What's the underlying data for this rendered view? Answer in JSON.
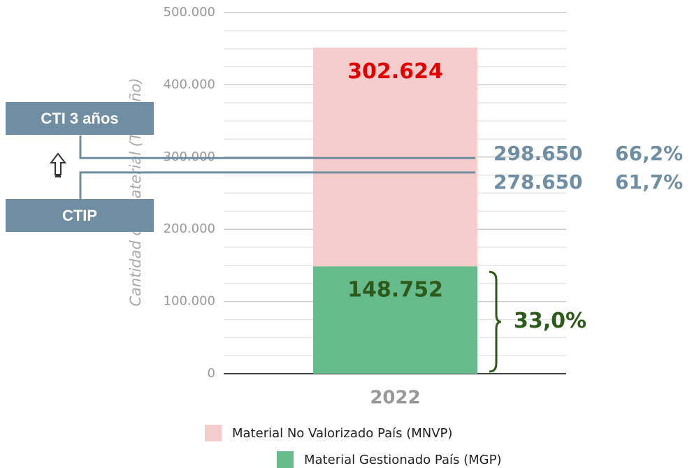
{
  "chart_data": {
    "type": "stacked_bar",
    "y_axis_label": "Cantidad de material (Ton/año)",
    "categories": [
      "2022"
    ],
    "series": [
      {
        "name": "Material Gestionado País (MGP)",
        "color": "#66bb8a",
        "label_color": "#2d5a1b",
        "values": [
          148752
        ],
        "value_labels": [
          "148.752"
        ]
      },
      {
        "name": "Material No Valorizado País (MNVP)",
        "color": "#f4cccc",
        "label_color": "#e00000",
        "values": [
          302624
        ],
        "value_labels": [
          "302.624"
        ]
      }
    ],
    "ylim": [
      0,
      500000
    ],
    "yticks": [
      0,
      {
        "value": 100000,
        "label": "100.000"
      },
      {
        "value": 200000,
        "label": "200.000"
      },
      {
        "value": 300000,
        "label": "300.000"
      },
      {
        "value": 400000,
        "label": "400.000"
      },
      {
        "value": 500000,
        "label": "500.000"
      }
    ],
    "minor_yticks": [
      25000,
      50000,
      75000,
      125000,
      150000,
      175000,
      225000,
      250000,
      275000,
      325000,
      350000,
      375000,
      425000,
      450000,
      475000
    ],
    "grid": true,
    "reference_lines": [
      {
        "name": "CTI 3 años",
        "value": 298650,
        "value_label": "298.650",
        "share_label": "66,2%",
        "color": "#6f8ea3"
      },
      {
        "name": "CTIP",
        "value": 278650,
        "value_label": "278.650",
        "share_label": "61,7%",
        "color": "#6f8ea3"
      }
    ],
    "brace_label": "33,0%"
  }
}
